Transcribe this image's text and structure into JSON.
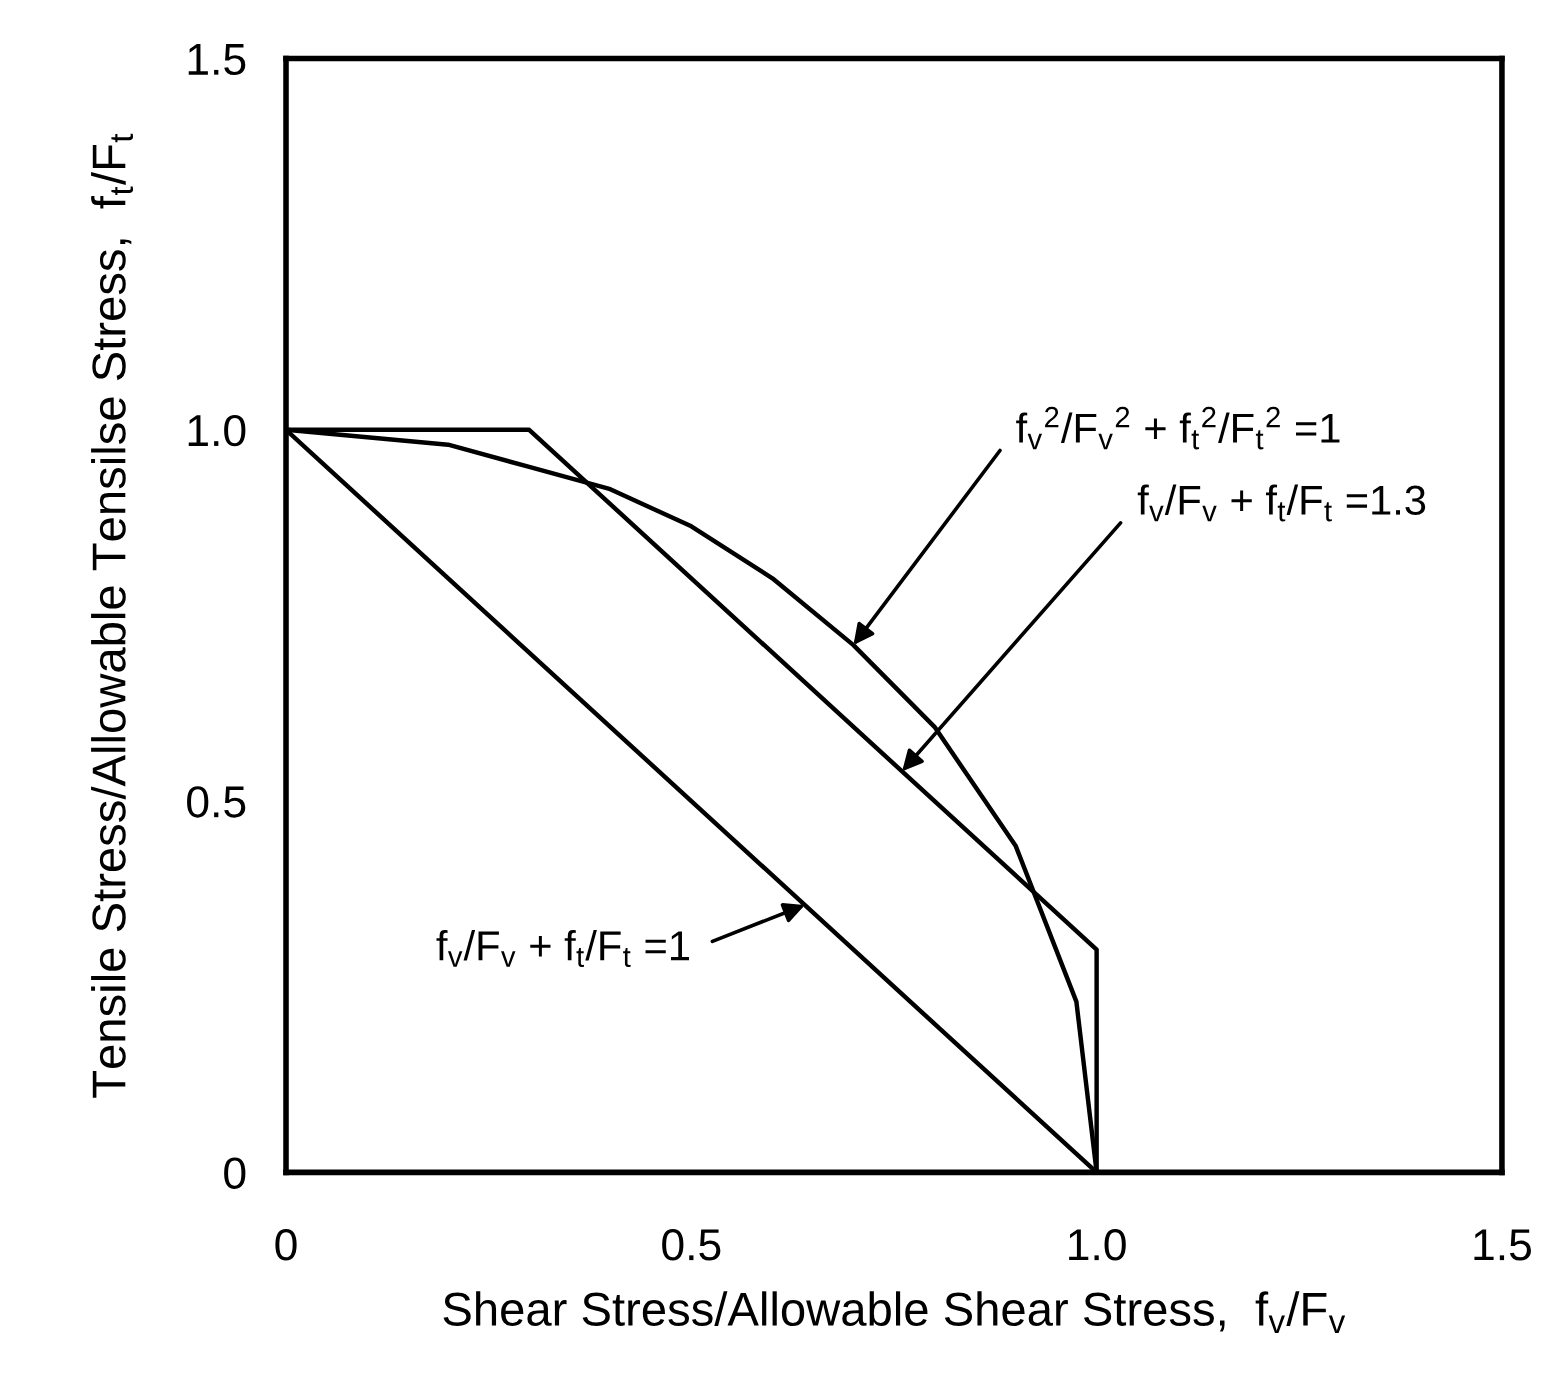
{
  "chart_data": {
    "type": "line",
    "xlabel": "Shear Stress/Allowable Shear Stress,  f$_{v}$/F$_{v}$",
    "ylabel": "Tensile Stress/Allowable Tensilse Stress,  f$_{t}$/F$_{t}$",
    "xlim": [
      0,
      1.5
    ],
    "ylim": [
      0,
      1.5
    ],
    "xticks": [
      0,
      0.5,
      {
        "value": 1,
        "label": "1.0"
      },
      1.5
    ],
    "yticks": [
      0,
      0.5,
      {
        "value": 1,
        "label": "1.0"
      },
      1.5
    ],
    "grid": false,
    "legend": false,
    "marker": "none",
    "line_style": "solid",
    "series": [
      {
        "color": "#000000",
        "x": [
          0,
          1
        ],
        "values": [
          1,
          0
        ]
      },
      {
        "color": "#000000",
        "x": [
          0,
          0.3,
          1,
          1
        ],
        "values": [
          1,
          1,
          0.3,
          0
        ]
      },
      {
        "color": "#000000",
        "x": [
          0,
          0.2,
          0.3,
          0.4,
          0.5,
          0.6,
          0.7,
          0.8,
          0.9,
          0.975,
          1
        ],
        "values": [
          1,
          0.98,
          0.95,
          0.92,
          0.87,
          0.8,
          0.71,
          0.6,
          0.44,
          0.23,
          0
        ]
      }
    ],
    "annotations": [
      "f$_{v}$$^{2}$/F$_{v}$$^{2}$ + f$_{t}$$^{2}$/F$_{t}$$^{2}$ =1",
      "f$_{v}$/F$_{v}$ + f$_{t}$/F$_{t}$ =1.3",
      "f$_{v}$/F$_{v}$ + f$_{t}$/F$_{t}$ =1"
    ]
  }
}
